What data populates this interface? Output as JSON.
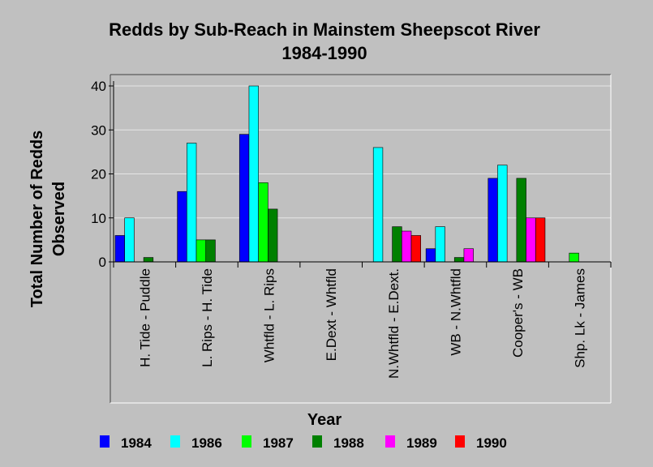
{
  "chart_data": {
    "type": "bar",
    "title": "Redds by Sub-Reach in Mainstem Sheepscot River",
    "subtitle": "1984-1990",
    "xlabel": "Year",
    "ylabel_line1": "Total Number of Redds",
    "ylabel_line2": "Observed",
    "ylim": [
      0,
      40
    ],
    "yticks": [
      "0",
      "10",
      "20",
      "30",
      "40"
    ],
    "grid": true,
    "legend_position": "bottom",
    "categories": [
      "H. Tide - Puddle",
      "L. Rips - H. Tide",
      "Whtfld - L. Rips",
      "E.Dext - Whtfld",
      "N.Whtfld - E.Dext.",
      "WB - N.Whtfld",
      "Cooper's - WB",
      "Shp. Lk - James"
    ],
    "series": [
      {
        "name": "1984",
        "color": "#0000ff",
        "values": [
          6,
          16,
          29,
          0,
          0,
          3,
          19,
          0
        ]
      },
      {
        "name": "1986",
        "color": "#00ffff",
        "values": [
          10,
          27,
          40,
          0,
          26,
          8,
          22,
          0
        ]
      },
      {
        "name": "1987",
        "color": "#00ff00",
        "values": [
          0,
          5,
          18,
          0,
          0,
          0,
          0,
          2
        ]
      },
      {
        "name": "1988",
        "color": "#008000",
        "values": [
          1,
          5,
          12,
          0,
          8,
          1,
          19,
          0
        ]
      },
      {
        "name": "1989",
        "color": "#ff00ff",
        "values": [
          0,
          0,
          0,
          0,
          7,
          3,
          10,
          0
        ]
      },
      {
        "name": "1990",
        "color": "#ff0000",
        "values": [
          0,
          0,
          0,
          0,
          6,
          0,
          10,
          0
        ]
      }
    ]
  }
}
